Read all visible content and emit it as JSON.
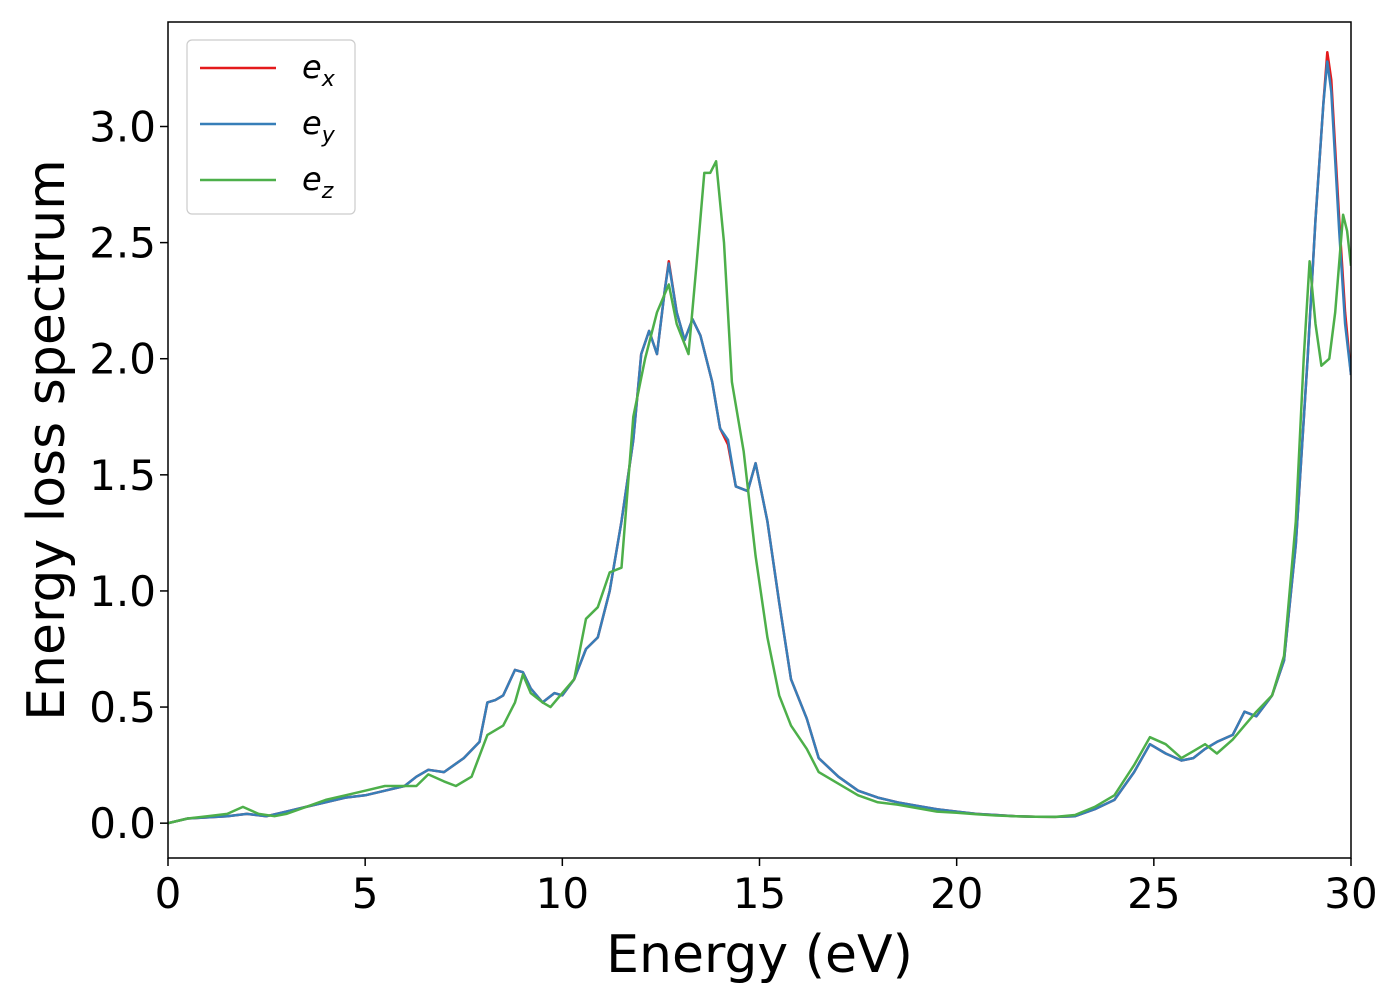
{
  "chart_data": {
    "type": "line",
    "xlabel": "Energy (eV)",
    "ylabel": "Energy loss spectrum",
    "xlim": [
      0,
      30
    ],
    "ylim": [
      -0.15,
      3.45
    ],
    "xticks": [
      0,
      5,
      10,
      15,
      20,
      25,
      30
    ],
    "xtick_labels": [
      "0",
      "5",
      "10",
      "15",
      "20",
      "25",
      "30"
    ],
    "yticks": [
      0.0,
      0.5,
      1.0,
      1.5,
      2.0,
      2.5,
      3.0
    ],
    "ytick_labels": [
      "0.0",
      "0.5",
      "1.0",
      "1.5",
      "2.0",
      "2.5",
      "3.0"
    ],
    "grid": false,
    "legend_position": "top-left",
    "series": [
      {
        "name": "e",
        "subscript": "x",
        "color": "#e41a1c",
        "points": [
          [
            0,
            0.0
          ],
          [
            0.5,
            0.02
          ],
          [
            1,
            0.025
          ],
          [
            1.5,
            0.03
          ],
          [
            2,
            0.04
          ],
          [
            2.5,
            0.03
          ],
          [
            3,
            0.05
          ],
          [
            3.5,
            0.07
          ],
          [
            4,
            0.09
          ],
          [
            4.5,
            0.11
          ],
          [
            5,
            0.12
          ],
          [
            5.5,
            0.14
          ],
          [
            6,
            0.16
          ],
          [
            6.3,
            0.2
          ],
          [
            6.6,
            0.23
          ],
          [
            7,
            0.22
          ],
          [
            7.5,
            0.28
          ],
          [
            7.9,
            0.35
          ],
          [
            8.1,
            0.52
          ],
          [
            8.3,
            0.53
          ],
          [
            8.5,
            0.55
          ],
          [
            8.8,
            0.66
          ],
          [
            9.0,
            0.65
          ],
          [
            9.2,
            0.58
          ],
          [
            9.5,
            0.52
          ],
          [
            9.8,
            0.56
          ],
          [
            10,
            0.55
          ],
          [
            10.3,
            0.62
          ],
          [
            10.6,
            0.75
          ],
          [
            10.9,
            0.8
          ],
          [
            11.2,
            1.0
          ],
          [
            11.5,
            1.3
          ],
          [
            11.8,
            1.65
          ],
          [
            12.0,
            2.02
          ],
          [
            12.2,
            2.12
          ],
          [
            12.4,
            2.02
          ],
          [
            12.6,
            2.3
          ],
          [
            12.7,
            2.42
          ],
          [
            12.9,
            2.2
          ],
          [
            13.1,
            2.08
          ],
          [
            13.3,
            2.17
          ],
          [
            13.5,
            2.1
          ],
          [
            13.8,
            1.9
          ],
          [
            14.0,
            1.7
          ],
          [
            14.2,
            1.63
          ],
          [
            14.4,
            1.45
          ],
          [
            14.7,
            1.43
          ],
          [
            14.9,
            1.55
          ],
          [
            15.2,
            1.3
          ],
          [
            15.5,
            0.95
          ],
          [
            15.8,
            0.62
          ],
          [
            16.2,
            0.45
          ],
          [
            16.5,
            0.28
          ],
          [
            17,
            0.2
          ],
          [
            17.5,
            0.14
          ],
          [
            18,
            0.11
          ],
          [
            18.5,
            0.09
          ],
          [
            19,
            0.075
          ],
          [
            19.5,
            0.06
          ],
          [
            20,
            0.05
          ],
          [
            20.5,
            0.04
          ],
          [
            21,
            0.035
          ],
          [
            21.5,
            0.03
          ],
          [
            22,
            0.028
          ],
          [
            22.5,
            0.027
          ],
          [
            23,
            0.03
          ],
          [
            23.5,
            0.06
          ],
          [
            24,
            0.1
          ],
          [
            24.5,
            0.22
          ],
          [
            24.9,
            0.34
          ],
          [
            25.3,
            0.3
          ],
          [
            25.7,
            0.27
          ],
          [
            26,
            0.28
          ],
          [
            26.3,
            0.32
          ],
          [
            26.6,
            0.35
          ],
          [
            27,
            0.38
          ],
          [
            27.3,
            0.48
          ],
          [
            27.6,
            0.46
          ],
          [
            28,
            0.55
          ],
          [
            28.3,
            0.7
          ],
          [
            28.6,
            1.2
          ],
          [
            28.9,
            2.0
          ],
          [
            29.1,
            2.6
          ],
          [
            29.3,
            3.1
          ],
          [
            29.4,
            3.32
          ],
          [
            29.5,
            3.2
          ],
          [
            29.7,
            2.6
          ],
          [
            29.85,
            2.2
          ],
          [
            30,
            1.93
          ]
        ]
      },
      {
        "name": "e",
        "subscript": "y",
        "color": "#377eb8",
        "points": [
          [
            0,
            0.0
          ],
          [
            0.5,
            0.02
          ],
          [
            1,
            0.025
          ],
          [
            1.5,
            0.03
          ],
          [
            2,
            0.04
          ],
          [
            2.5,
            0.03
          ],
          [
            3,
            0.05
          ],
          [
            3.5,
            0.07
          ],
          [
            4,
            0.09
          ],
          [
            4.5,
            0.11
          ],
          [
            5,
            0.12
          ],
          [
            5.5,
            0.14
          ],
          [
            6,
            0.16
          ],
          [
            6.3,
            0.2
          ],
          [
            6.6,
            0.23
          ],
          [
            7,
            0.22
          ],
          [
            7.5,
            0.28
          ],
          [
            7.9,
            0.35
          ],
          [
            8.1,
            0.52
          ],
          [
            8.3,
            0.53
          ],
          [
            8.5,
            0.55
          ],
          [
            8.8,
            0.66
          ],
          [
            9.0,
            0.65
          ],
          [
            9.2,
            0.58
          ],
          [
            9.5,
            0.52
          ],
          [
            9.8,
            0.56
          ],
          [
            10,
            0.55
          ],
          [
            10.3,
            0.62
          ],
          [
            10.6,
            0.75
          ],
          [
            10.9,
            0.8
          ],
          [
            11.2,
            1.0
          ],
          [
            11.5,
            1.3
          ],
          [
            11.8,
            1.65
          ],
          [
            12.0,
            2.02
          ],
          [
            12.2,
            2.12
          ],
          [
            12.4,
            2.02
          ],
          [
            12.6,
            2.3
          ],
          [
            12.7,
            2.41
          ],
          [
            12.9,
            2.2
          ],
          [
            13.1,
            2.08
          ],
          [
            13.3,
            2.17
          ],
          [
            13.5,
            2.1
          ],
          [
            13.8,
            1.9
          ],
          [
            14.0,
            1.7
          ],
          [
            14.2,
            1.65
          ],
          [
            14.4,
            1.45
          ],
          [
            14.7,
            1.43
          ],
          [
            14.9,
            1.55
          ],
          [
            15.2,
            1.3
          ],
          [
            15.5,
            0.95
          ],
          [
            15.8,
            0.62
          ],
          [
            16.2,
            0.45
          ],
          [
            16.5,
            0.28
          ],
          [
            17,
            0.2
          ],
          [
            17.5,
            0.14
          ],
          [
            18,
            0.11
          ],
          [
            18.5,
            0.09
          ],
          [
            19,
            0.075
          ],
          [
            19.5,
            0.06
          ],
          [
            20,
            0.05
          ],
          [
            20.5,
            0.04
          ],
          [
            21,
            0.035
          ],
          [
            21.5,
            0.03
          ],
          [
            22,
            0.028
          ],
          [
            22.5,
            0.027
          ],
          [
            23,
            0.03
          ],
          [
            23.5,
            0.06
          ],
          [
            24,
            0.1
          ],
          [
            24.5,
            0.22
          ],
          [
            24.9,
            0.34
          ],
          [
            25.3,
            0.3
          ],
          [
            25.7,
            0.27
          ],
          [
            26,
            0.28
          ],
          [
            26.3,
            0.32
          ],
          [
            26.6,
            0.35
          ],
          [
            27,
            0.38
          ],
          [
            27.3,
            0.48
          ],
          [
            27.6,
            0.46
          ],
          [
            28,
            0.55
          ],
          [
            28.3,
            0.7
          ],
          [
            28.6,
            1.2
          ],
          [
            28.9,
            2.0
          ],
          [
            29.1,
            2.6
          ],
          [
            29.3,
            3.1
          ],
          [
            29.4,
            3.28
          ],
          [
            29.5,
            3.15
          ],
          [
            29.7,
            2.55
          ],
          [
            29.85,
            2.15
          ],
          [
            30,
            1.93
          ]
        ]
      },
      {
        "name": "e",
        "subscript": "z",
        "color": "#4daf4a",
        "points": [
          [
            0,
            0.0
          ],
          [
            0.5,
            0.02
          ],
          [
            1,
            0.03
          ],
          [
            1.5,
            0.04
          ],
          [
            1.9,
            0.07
          ],
          [
            2.3,
            0.04
          ],
          [
            2.7,
            0.03
          ],
          [
            3,
            0.04
          ],
          [
            3.5,
            0.07
          ],
          [
            4,
            0.1
          ],
          [
            4.5,
            0.12
          ],
          [
            5,
            0.14
          ],
          [
            5.5,
            0.16
          ],
          [
            6,
            0.16
          ],
          [
            6.3,
            0.16
          ],
          [
            6.6,
            0.21
          ],
          [
            7,
            0.18
          ],
          [
            7.3,
            0.16
          ],
          [
            7.7,
            0.2
          ],
          [
            8.1,
            0.38
          ],
          [
            8.5,
            0.42
          ],
          [
            8.8,
            0.52
          ],
          [
            9.0,
            0.64
          ],
          [
            9.2,
            0.56
          ],
          [
            9.5,
            0.52
          ],
          [
            9.7,
            0.5
          ],
          [
            10,
            0.56
          ],
          [
            10.3,
            0.62
          ],
          [
            10.6,
            0.88
          ],
          [
            10.9,
            0.93
          ],
          [
            11.2,
            1.08
          ],
          [
            11.5,
            1.1
          ],
          [
            11.8,
            1.75
          ],
          [
            12.1,
            2.0
          ],
          [
            12.4,
            2.2
          ],
          [
            12.7,
            2.32
          ],
          [
            12.9,
            2.15
          ],
          [
            13.2,
            2.02
          ],
          [
            13.4,
            2.4
          ],
          [
            13.6,
            2.8
          ],
          [
            13.75,
            2.8
          ],
          [
            13.9,
            2.85
          ],
          [
            14.1,
            2.5
          ],
          [
            14.3,
            1.9
          ],
          [
            14.6,
            1.6
          ],
          [
            14.9,
            1.15
          ],
          [
            15.2,
            0.8
          ],
          [
            15.5,
            0.55
          ],
          [
            15.8,
            0.42
          ],
          [
            16.2,
            0.32
          ],
          [
            16.5,
            0.22
          ],
          [
            17,
            0.17
          ],
          [
            17.5,
            0.12
          ],
          [
            18,
            0.09
          ],
          [
            18.5,
            0.08
          ],
          [
            19,
            0.065
          ],
          [
            19.5,
            0.05
          ],
          [
            20,
            0.045
          ],
          [
            20.5,
            0.038
          ],
          [
            21,
            0.033
          ],
          [
            21.5,
            0.03
          ],
          [
            22,
            0.028
          ],
          [
            22.5,
            0.027
          ],
          [
            23,
            0.035
          ],
          [
            23.5,
            0.07
          ],
          [
            24,
            0.12
          ],
          [
            24.5,
            0.25
          ],
          [
            24.9,
            0.37
          ],
          [
            25.3,
            0.34
          ],
          [
            25.7,
            0.28
          ],
          [
            26,
            0.31
          ],
          [
            26.3,
            0.34
          ],
          [
            26.6,
            0.3
          ],
          [
            27,
            0.36
          ],
          [
            27.3,
            0.42
          ],
          [
            27.6,
            0.48
          ],
          [
            28,
            0.55
          ],
          [
            28.3,
            0.72
          ],
          [
            28.6,
            1.3
          ],
          [
            28.8,
            2.0
          ],
          [
            28.95,
            2.42
          ],
          [
            29.1,
            2.15
          ],
          [
            29.25,
            1.97
          ],
          [
            29.45,
            2.0
          ],
          [
            29.6,
            2.2
          ],
          [
            29.8,
            2.62
          ],
          [
            29.9,
            2.55
          ],
          [
            30,
            2.4
          ]
        ]
      }
    ]
  }
}
